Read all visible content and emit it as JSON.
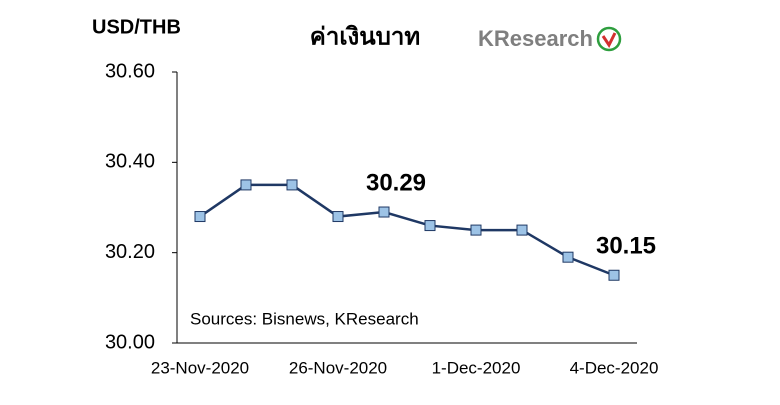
{
  "chart_data": {
    "type": "line",
    "title": "ค่าเงินบาท",
    "y_axis_label": "USD/THB",
    "logo": "KResearch",
    "source": "Sources: Bisnews, KResearch",
    "categories": [
      "23-Nov-2020",
      null,
      null,
      "26-Nov-2020",
      null,
      null,
      "1-Dec-2020",
      null,
      null,
      "4-Dec-2020"
    ],
    "series": [
      {
        "name": "USD/THB",
        "color": "#1f3864",
        "marker_color": "#9dc3e6",
        "values": [
          30.28,
          30.35,
          30.35,
          30.28,
          30.29,
          30.26,
          30.25,
          30.25,
          30.19,
          30.15
        ],
        "value_labels": [
          null,
          null,
          null,
          null,
          "30.29",
          null,
          null,
          null,
          null,
          "30.15"
        ]
      }
    ],
    "ylim": [
      30.0,
      30.6
    ],
    "yticks": [
      {
        "value": 30.0,
        "label": "30.00"
      },
      {
        "value": 30.2,
        "label": "30.20"
      },
      {
        "value": 30.4,
        "label": "30.40"
      },
      {
        "value": 30.6,
        "label": "30.60"
      }
    ],
    "grid": false
  }
}
